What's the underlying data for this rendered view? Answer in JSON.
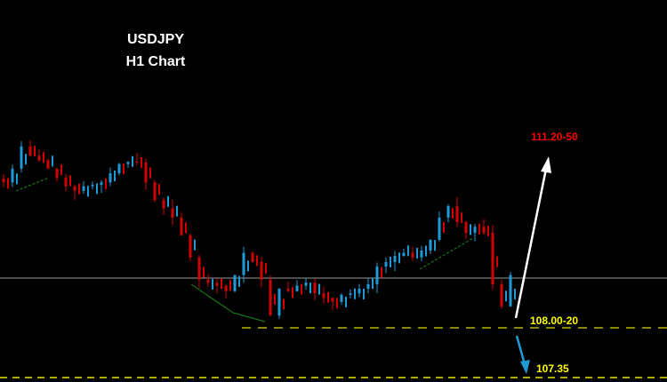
{
  "chart_data": {
    "type": "candlestick",
    "title": "USDJPY",
    "subtitle": "H1 Chart",
    "closes": [
      109.9,
      110.08,
      110.37,
      110.25,
      110.19,
      110.08,
      109.96,
      109.85,
      109.79,
      109.85,
      109.87,
      109.9,
      110.02,
      110.14,
      110.17,
      110.16,
      109.9,
      109.67,
      109.56,
      109.44,
      109.21,
      108.92,
      108.63,
      108.59,
      108.55,
      108.48,
      108.69,
      108.98,
      108.86,
      108.63,
      108.16,
      108.51,
      108.48,
      108.55,
      108.59,
      108.45,
      108.39,
      108.34,
      108.43,
      108.45,
      108.51,
      108.57,
      108.8,
      108.86,
      108.94,
      108.98,
      108.92,
      109.01,
      109.15,
      109.44,
      109.59,
      109.38,
      109.24,
      109.32,
      109.24,
      108.57,
      108.28,
      108.69
    ],
    "levels": {
      "current_price": 108.65,
      "support": 108.0,
      "lower_target": 107.35
    },
    "annotations": {
      "upper_target": "111.20-50",
      "support": "108.00-20",
      "lower_target": "107.35"
    },
    "colors": {
      "up": "#1e9bd7",
      "down": "#d40000",
      "background": "#000000",
      "support": "#8a8a00",
      "lower_target": "#e6e600",
      "upper_label": "#ff0000",
      "support_label": "#ffff00"
    },
    "grid": false
  }
}
